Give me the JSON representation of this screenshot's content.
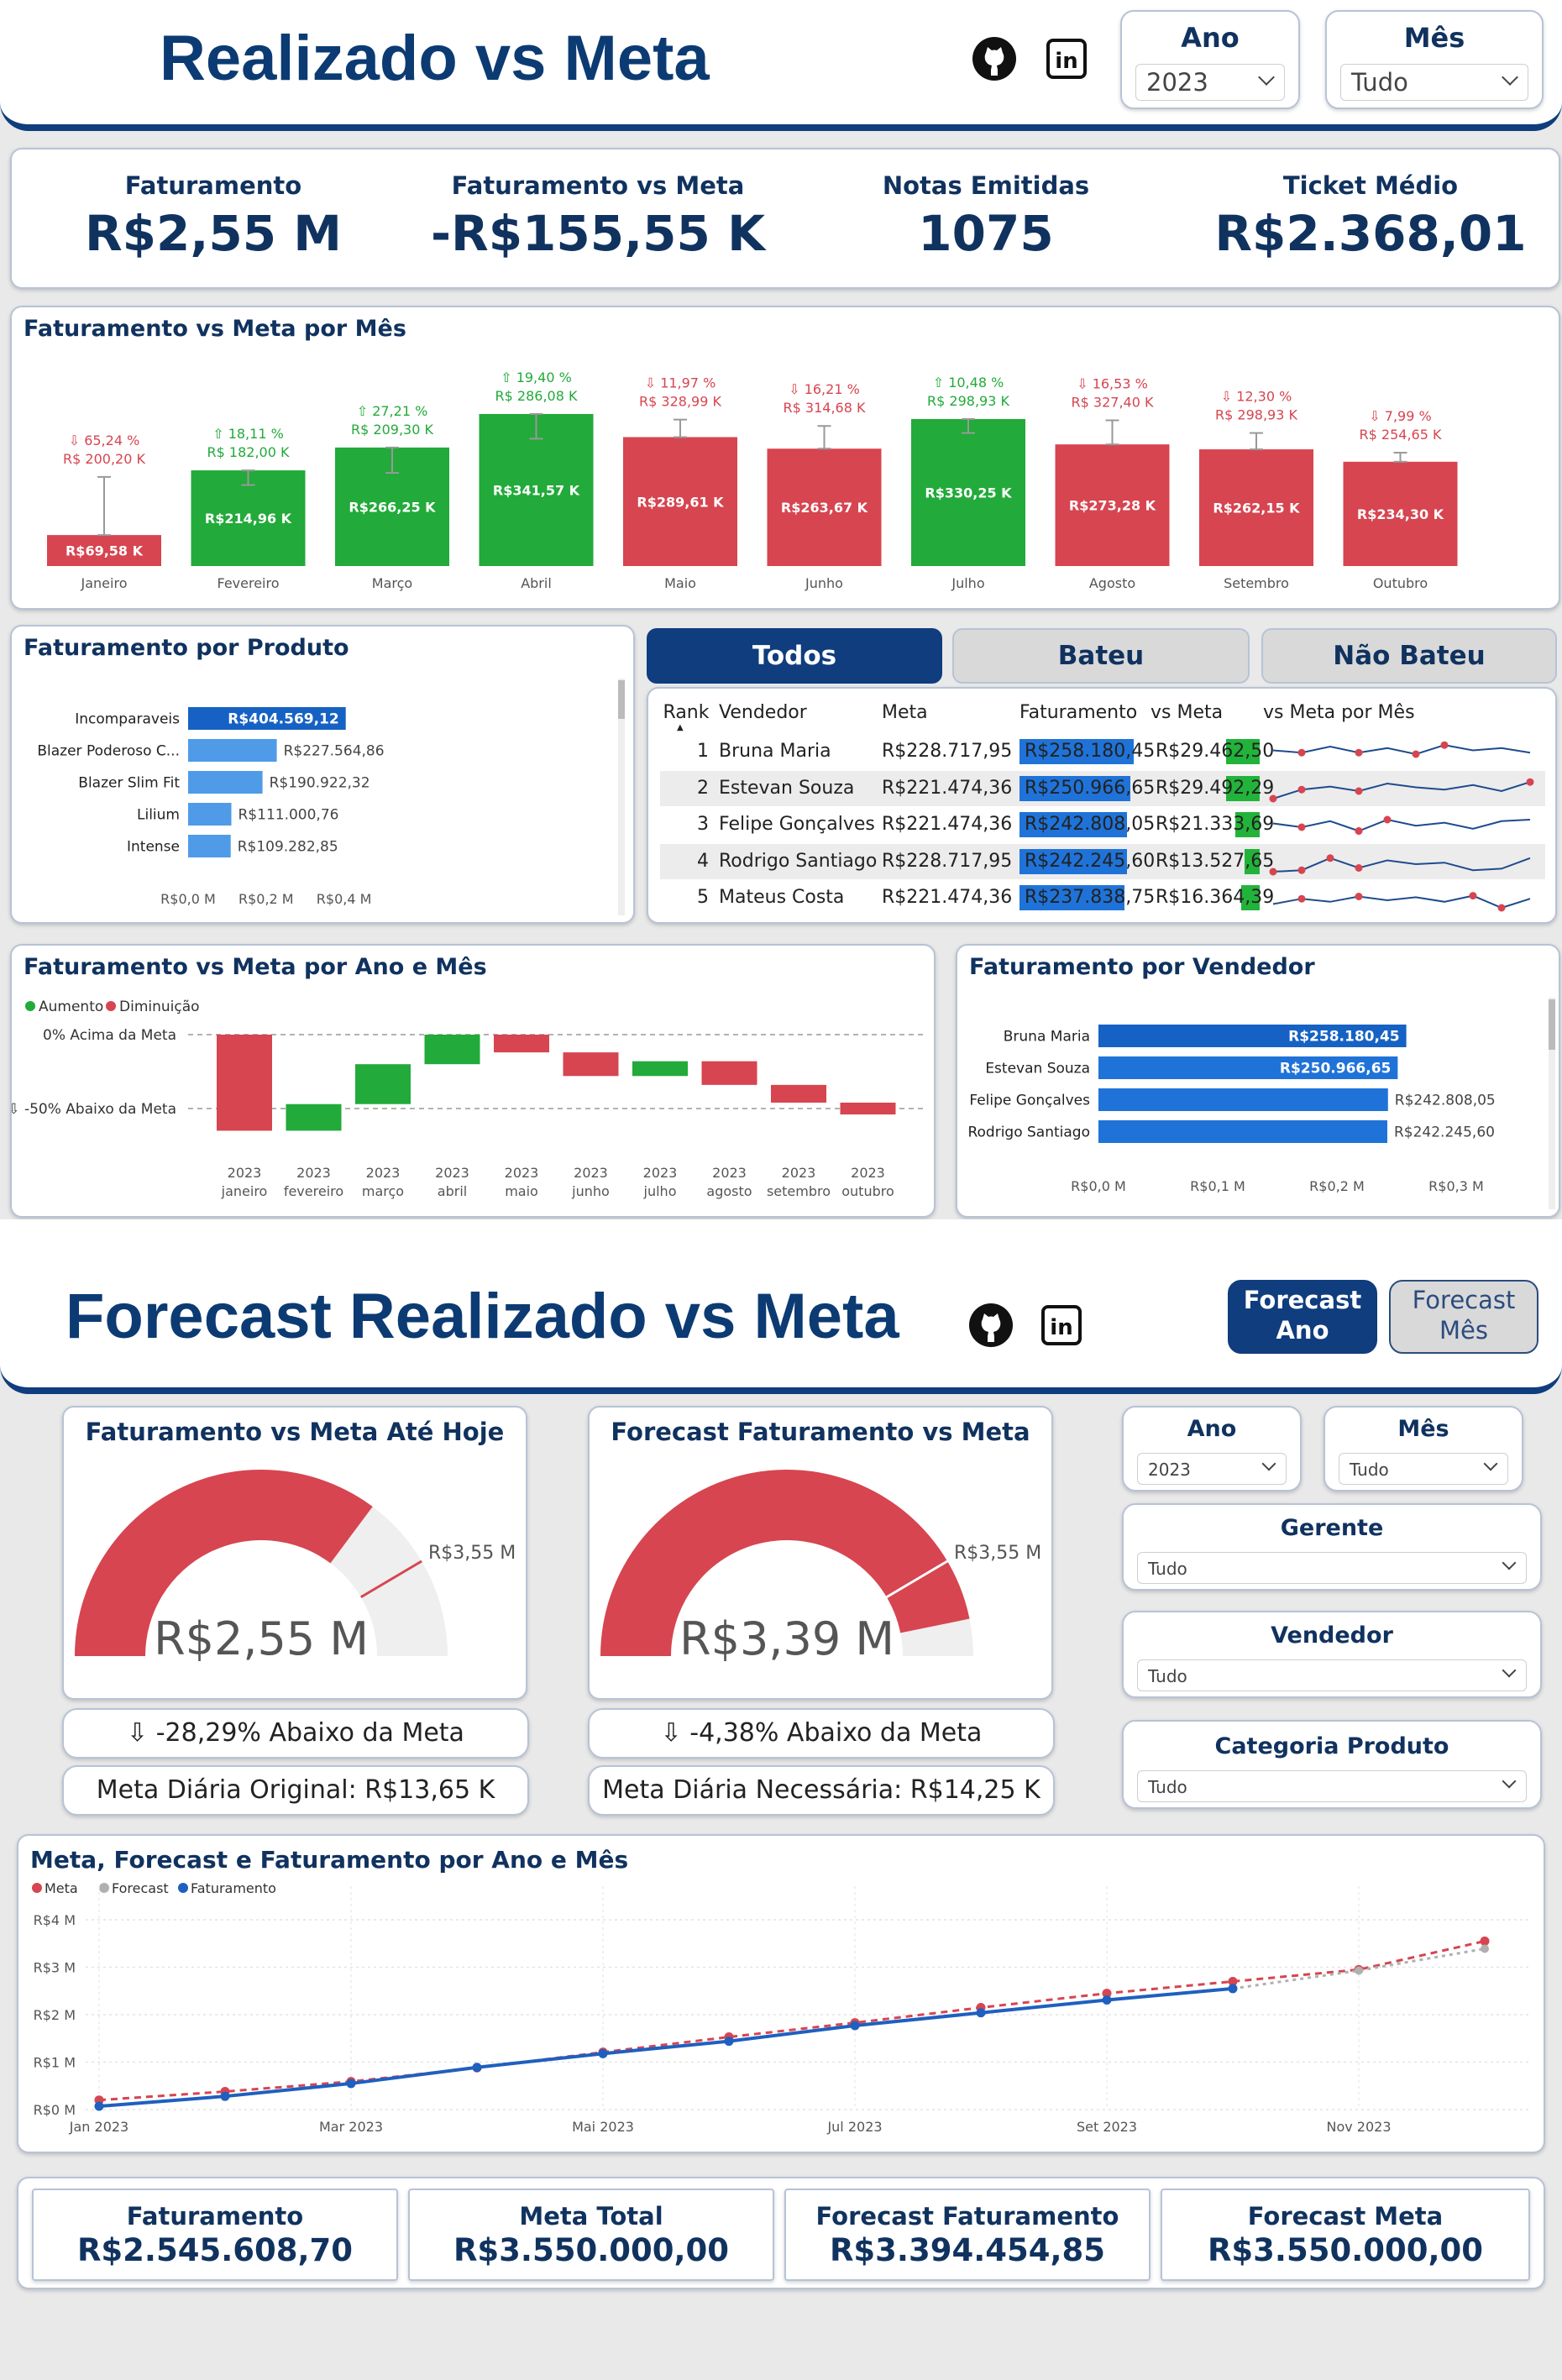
{
  "page1": {
    "title": "Realizado vs Meta",
    "icons": [
      "github-icon",
      "linkedin-icon"
    ],
    "ano": {
      "label": "Ano",
      "value": "2023"
    },
    "mes": {
      "label": "Mês",
      "value": "Tudo"
    },
    "kpis": [
      {
        "label": "Faturamento",
        "value": "R$2,55 M"
      },
      {
        "label": "Faturamento vs Meta",
        "value": "-R$155,55 K"
      },
      {
        "label": "Notas Emitidas",
        "value": "1075"
      },
      {
        "label": "Ticket Médio",
        "value": "R$2.368,01"
      }
    ],
    "monthly": {
      "title": "Faturamento vs Meta por Mês",
      "bars": [
        {
          "month": "Janeiro",
          "value": 69.58,
          "label": "R$69,58 K",
          "meta": 200.2,
          "pct": "⇩ 65,24 %",
          "meta_label": "R$ 200,20 K",
          "status": "below"
        },
        {
          "month": "Fevereiro",
          "value": 214.96,
          "label": "R$214,96 K",
          "meta": 182.0,
          "pct": "⇧ 18,11 %",
          "meta_label": "R$ 182,00 K",
          "status": "above"
        },
        {
          "month": "Março",
          "value": 266.25,
          "label": "R$266,25 K",
          "meta": 209.3,
          "pct": "⇧ 27,21 %",
          "meta_label": "R$ 209,30 K",
          "status": "above"
        },
        {
          "month": "Abril",
          "value": 341.57,
          "label": "R$341,57 K",
          "meta": 286.08,
          "pct": "⇧ 19,40 %",
          "meta_label": "R$ 286,08 K",
          "status": "above"
        },
        {
          "month": "Maio",
          "value": 289.61,
          "label": "R$289,61 K",
          "meta": 328.99,
          "pct": "⇩ 11,97 %",
          "meta_label": "R$ 328,99 K",
          "status": "below"
        },
        {
          "month": "Junho",
          "value": 263.67,
          "label": "R$263,67 K",
          "meta": 314.68,
          "pct": "⇩ 16,21 %",
          "meta_label": "R$ 314,68 K",
          "status": "below"
        },
        {
          "month": "Julho",
          "value": 330.25,
          "label": "R$330,25 K",
          "meta": 298.93,
          "pct": "⇧ 10,48 %",
          "meta_label": "R$ 298,93 K",
          "status": "above"
        },
        {
          "month": "Agosto",
          "value": 273.28,
          "label": "R$273,28 K",
          "meta": 327.4,
          "pct": "⇩ 16,53 %",
          "meta_label": "R$ 327,40 K",
          "status": "below"
        },
        {
          "month": "Setembro",
          "value": 262.15,
          "label": "R$262,15 K",
          "meta": 298.93,
          "pct": "⇩ 12,30 %",
          "meta_label": "R$ 298,93 K",
          "status": "below"
        },
        {
          "month": "Outubro",
          "value": 234.3,
          "label": "R$234,30 K",
          "meta": 254.65,
          "pct": "⇩ 7,99 %",
          "meta_label": "R$ 254,65 K",
          "status": "below"
        }
      ]
    },
    "produto": {
      "title": "Faturamento por Produto",
      "items": [
        {
          "name": "Incomparaveis",
          "value": 404569.12,
          "label": "R$404.569,12"
        },
        {
          "name": "Blazer Poderoso C...",
          "value": 227564.86,
          "label": "R$227.564,86"
        },
        {
          "name": "Blazer Slim Fit",
          "value": 190922.32,
          "label": "R$190.922,32"
        },
        {
          "name": "Lilium",
          "value": 111000.76,
          "label": "R$111.000,76"
        },
        {
          "name": "Intense",
          "value": 109282.85,
          "label": "R$109.282,85"
        }
      ],
      "ticks": [
        {
          "v": 0,
          "label": "R$0,0 M"
        },
        {
          "v": 200000,
          "label": "R$0,2 M"
        },
        {
          "v": 400000,
          "label": "R$0,4 M"
        }
      ]
    },
    "tabs": [
      "Todos",
      "Bateu",
      "Não Bateu"
    ],
    "table": {
      "headers": [
        "Rank",
        "Vendedor",
        "Meta",
        "Faturamento",
        "vs Meta",
        "vs Meta por Mês"
      ],
      "rows": [
        {
          "rank": "1",
          "name": "Bruna Maria",
          "meta": "R$228.717,95",
          "fat": "R$258.180,45",
          "vs": "R$29.462,50",
          "fat_v": 258180.45,
          "vs_v": 29462.5,
          "spark": [
            55,
            52,
            60,
            52,
            58,
            50,
            62,
            55,
            58,
            52
          ]
        },
        {
          "rank": "2",
          "name": "Estevan Souza",
          "meta": "R$221.474,36",
          "fat": "R$250.966,65",
          "vs": "R$29.492,29",
          "fat_v": 250966.65,
          "vs_v": 29492.29,
          "spark": [
            40,
            52,
            56,
            50,
            60,
            55,
            52,
            58,
            50,
            62
          ]
        },
        {
          "rank": "3",
          "name": "Felipe Gonçalves",
          "meta": "R$221.474,36",
          "fat": "R$242.808,05",
          "vs": "R$21.333,69",
          "fat_v": 242808.05,
          "vs_v": 21333.69,
          "spark": [
            55,
            50,
            58,
            45,
            60,
            52,
            56,
            48,
            58,
            60
          ]
        },
        {
          "rank": "4",
          "name": "Rodrigo Santiago",
          "meta": "R$228.717,95",
          "fat": "R$242.245,60",
          "vs": "R$13.527,65",
          "fat_v": 242245.6,
          "vs_v": 13527.65,
          "spark": [
            40,
            42,
            58,
            45,
            55,
            50,
            52,
            42,
            44,
            58
          ]
        },
        {
          "rank": "5",
          "name": "Mateus Costa",
          "meta": "R$221.474,36",
          "fat": "R$237.838,75",
          "vs": "R$16.364,39",
          "fat_v": 237838.75,
          "vs_v": 16364.39,
          "spark": [
            45,
            52,
            48,
            55,
            50,
            54,
            48,
            56,
            40,
            52
          ]
        }
      ]
    },
    "waterfall": {
      "title": "Faturamento vs Meta por Ano e Mês",
      "legend": [
        "Aumento",
        "Diminuição"
      ],
      "ref_top": "0% Acima da Meta",
      "ref_bottom": "⇩ -50% Abaixo da Meta",
      "steps": [
        {
          "year": "2023",
          "month": "janeiro",
          "start": 0,
          "end": -65
        },
        {
          "year": "2023",
          "month": "fevereiro",
          "start": -65,
          "end": -47
        },
        {
          "year": "2023",
          "month": "março",
          "start": -47,
          "end": -20
        },
        {
          "year": "2023",
          "month": "abril",
          "start": -20,
          "end": 0
        },
        {
          "year": "2023",
          "month": "maio",
          "start": 0,
          "end": -12
        },
        {
          "year": "2023",
          "month": "junho",
          "start": -12,
          "end": -28
        },
        {
          "year": "2023",
          "month": "julho",
          "start": -28,
          "end": -18
        },
        {
          "year": "2023",
          "month": "agosto",
          "start": -18,
          "end": -34
        },
        {
          "year": "2023",
          "month": "setembro",
          "start": -34,
          "end": -46
        },
        {
          "year": "2023",
          "month": "outubro",
          "start": -46,
          "end": -54
        }
      ]
    },
    "vendedor": {
      "title": "Faturamento por Vendedor",
      "items": [
        {
          "name": "Bruna Maria",
          "value": 258180.45,
          "label": "R$258.180,45"
        },
        {
          "name": "Estevan Souza",
          "value": 250966.65,
          "label": "R$250.966,65"
        },
        {
          "name": "Felipe Gonçalves",
          "value": 242808.05,
          "label": "R$242.808,05"
        },
        {
          "name": "Rodrigo Santiago",
          "value": 242245.6,
          "label": "R$242.245,60"
        }
      ],
      "ticks": [
        {
          "v": 0,
          "label": "R$0,0 M"
        },
        {
          "v": 100000,
          "label": "R$0,1 M"
        },
        {
          "v": 200000,
          "label": "R$0,2 M"
        },
        {
          "v": 300000,
          "label": "R$0,3 M"
        }
      ]
    }
  },
  "page2": {
    "title": "Forecast Realizado vs Meta",
    "buttons": [
      {
        "l1": "Forecast",
        "l2": "Ano"
      },
      {
        "l1": "Forecast",
        "l2": "Mês"
      }
    ],
    "gauges": [
      {
        "title": "Faturamento vs Meta Até Hoje",
        "value": 2.55,
        "max": 3.55,
        "value_label": "R$2,55 M",
        "max_label": "R$3,55 M",
        "pill1": "⇩ -28,29% Abaixo da Meta",
        "pill2": "Meta Diária Original: R$13,65 K"
      },
      {
        "title": "Forecast Faturamento vs Meta",
        "value": 3.39,
        "max": 3.55,
        "value_label": "R$3,39 M",
        "max_label": "R$3,55 M",
        "pill1": "⇩ -4,38% Abaixo da Meta",
        "pill2": "Meta Diária Necessária: R$14,25 K"
      }
    ],
    "slicers": [
      {
        "label": "Ano",
        "value": "2023"
      },
      {
        "label": "Mês",
        "value": "Tudo"
      },
      {
        "label": "Gerente",
        "value": "Tudo"
      },
      {
        "label": "Vendedor",
        "value": "Tudo"
      },
      {
        "label": "Categoria Produto",
        "value": "Tudo"
      }
    ],
    "bottom_kpis": [
      {
        "label": "Faturamento",
        "value": "R$2.545.608,70"
      },
      {
        "label": "Meta Total",
        "value": "R$3.550.000,00"
      },
      {
        "label": "Forecast Faturamento",
        "value": "R$3.394.454,85"
      },
      {
        "label": "Forecast Meta",
        "value": "R$3.550.000,00"
      }
    ]
  },
  "chart_data": [
    {
      "type": "bar",
      "title": "Faturamento vs Meta por Mês",
      "categories": [
        "Janeiro",
        "Fevereiro",
        "Março",
        "Abril",
        "Maio",
        "Junho",
        "Julho",
        "Agosto",
        "Setembro",
        "Outubro"
      ],
      "series": [
        {
          "name": "",
          "values": [
            69.58,
            214.96,
            266.25,
            341.57,
            289.61,
            263.67,
            330.25,
            273.28,
            262.15,
            234.3
          ]
        }
      ],
      "meta": [
        200.2,
        182.0,
        209.3,
        286.08,
        328.99,
        314.68,
        298.93,
        327.4,
        298.93,
        254.65
      ],
      "ylim": [
        0,
        370
      ]
    },
    {
      "type": "bar",
      "title": "Faturamento por Produto",
      "categories": [
        "Incomparaveis",
        "Blazer Poderoso C...",
        "Blazer Slim Fit",
        "Lilium",
        "Intense"
      ],
      "values": [
        404569.12,
        227564.86,
        190922.32,
        111000.76,
        109282.85
      ],
      "xlim": [
        0,
        500000
      ]
    },
    {
      "type": "bar",
      "title": "Faturamento vs Meta por Ano e Mês",
      "subtype": "waterfall",
      "legend": [
        "Aumento",
        "Diminuição"
      ]
    },
    {
      "type": "bar",
      "title": "Faturamento por Vendedor",
      "categories": [
        "Bruna Maria",
        "Estevan Souza",
        "Felipe Gonçalves",
        "Rodrigo Santiago"
      ],
      "values": [
        258180.45,
        250966.65,
        242808.05,
        242245.6
      ],
      "xlim": [
        0,
        300000
      ]
    },
    {
      "type": "line",
      "title": "Meta, Forecast e Faturamento por Ano e Mês",
      "x": [
        "Jan 2023",
        "Fev 2023",
        "Mar 2023",
        "Abr 2023",
        "Mai 2023",
        "Jun 2023",
        "Jul 2023",
        "Ago 2023",
        "Set 2023",
        "Out 2023",
        "Nov 2023",
        "Dez 2023"
      ],
      "x_ticks": [
        "Jan 2023",
        "Mar 2023",
        "Mai 2023",
        "Jul 2023",
        "Set 2023",
        "Nov 2023"
      ],
      "y_ticks": [
        {
          "v": 0,
          "label": "R$0 M"
        },
        {
          "v": 1,
          "label": "R$1 M"
        },
        {
          "v": 2,
          "label": "R$2 M"
        },
        {
          "v": 3,
          "label": "R$3 M"
        },
        {
          "v": 4,
          "label": "R$4 M"
        }
      ],
      "ylim": [
        0,
        4
      ],
      "legend": "top-left",
      "series": [
        {
          "name": "Meta",
          "color": "#d64550",
          "values": [
            0.2,
            0.38,
            0.59,
            0.88,
            1.21,
            1.53,
            1.83,
            2.15,
            2.45,
            2.7,
            2.95,
            3.55
          ]
        },
        {
          "name": "Forecast",
          "color": "#b0b0b0",
          "values": [
            null,
            null,
            null,
            null,
            null,
            null,
            null,
            null,
            null,
            2.55,
            2.93,
            3.39
          ]
        },
        {
          "name": "Faturamento",
          "color": "#1f5fbf",
          "values": [
            0.07,
            0.28,
            0.55,
            0.89,
            1.18,
            1.44,
            1.77,
            2.04,
            2.31,
            2.55,
            null,
            null
          ]
        }
      ]
    }
  ]
}
